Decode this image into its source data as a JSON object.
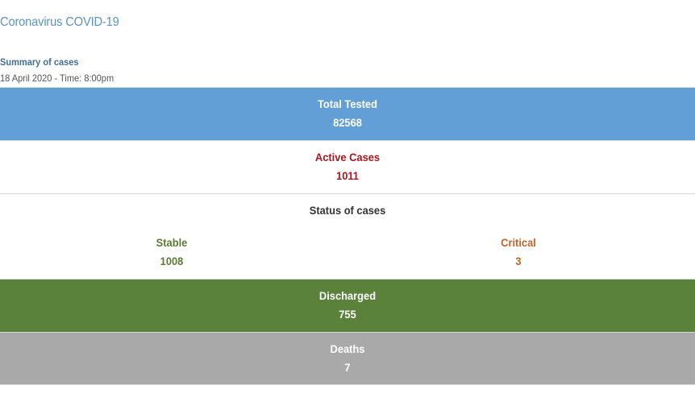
{
  "page": {
    "title": "Coronavirus COVID-19"
  },
  "summary": {
    "heading": "Summary of cases",
    "date_time": "18 April 2020 - Time: 8:00pm"
  },
  "colors": {
    "title": "#5a93bf",
    "tested_bg": "#619fd6",
    "active_text": "#b0141c",
    "stable_text": "#5a7a33",
    "critical_text": "#c5612a",
    "discharged_bg": "#5b823a",
    "deaths_bg": "#a9a9a9"
  },
  "stats": {
    "total_tested": {
      "label": "Total Tested",
      "value": "82568"
    },
    "active_cases": {
      "label": "Active Cases",
      "value": "1011"
    },
    "status": {
      "heading": "Status of cases",
      "stable": {
        "label": "Stable",
        "value": "1008"
      },
      "critical": {
        "label": "Critical",
        "value": "3"
      }
    },
    "discharged": {
      "label": "Discharged",
      "value": "755"
    },
    "deaths": {
      "label": "Deaths",
      "value": "7"
    }
  }
}
